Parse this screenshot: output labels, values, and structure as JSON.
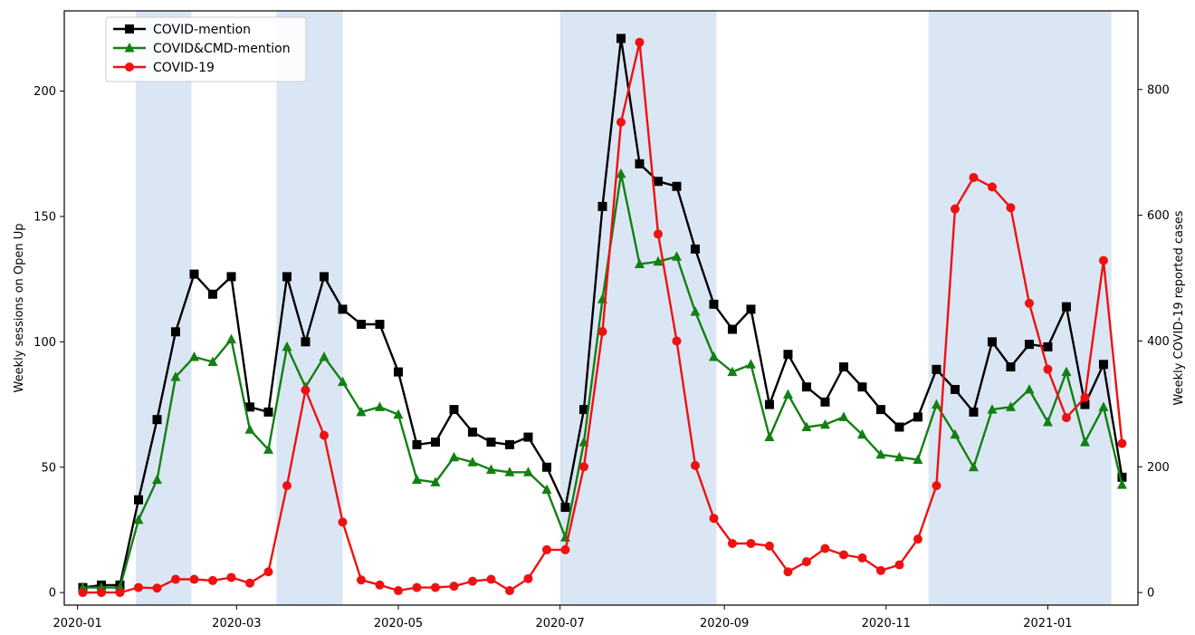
{
  "chart_data": {
    "type": "line",
    "title": "",
    "xlabel": "",
    "ylabel": "Weekly sessions on Open Up",
    "y2label": "Weekly COVID-19 reported cases",
    "xlim": [
      "2019-12-27",
      "2021-02-04"
    ],
    "ylim": [
      -5,
      232
    ],
    "y2lim": [
      -20,
      925
    ],
    "x_ticks": [
      "2020-01",
      "2020-03",
      "2020-05",
      "2020-07",
      "2020-09",
      "2020-11",
      "2021-01"
    ],
    "x_tick_dates": [
      "2020-01-01",
      "2020-03-01",
      "2020-05-01",
      "2020-07-01",
      "2020-09-01",
      "2020-11-01",
      "2021-01-01"
    ],
    "y_ticks": [
      0,
      50,
      100,
      150,
      200
    ],
    "y2_ticks": [
      0,
      200,
      400,
      600,
      800
    ],
    "grid": false,
    "legend_position": "top-left",
    "shaded_periods": [
      [
        "2020-01-23",
        "2020-02-13"
      ],
      [
        "2020-03-16",
        "2020-04-10"
      ],
      [
        "2020-07-01",
        "2020-08-29"
      ],
      [
        "2020-11-17",
        "2021-01-25"
      ]
    ],
    "shade_color": "#dbe6f4",
    "x": [
      "2020-01-03",
      "2020-01-10",
      "2020-01-17",
      "2020-01-24",
      "2020-01-31",
      "2020-02-07",
      "2020-02-14",
      "2020-02-21",
      "2020-02-28",
      "2020-03-06",
      "2020-03-13",
      "2020-03-20",
      "2020-03-27",
      "2020-04-03",
      "2020-04-10",
      "2020-04-17",
      "2020-04-24",
      "2020-05-01",
      "2020-05-08",
      "2020-05-15",
      "2020-05-22",
      "2020-05-29",
      "2020-06-05",
      "2020-06-12",
      "2020-06-19",
      "2020-06-26",
      "2020-07-03",
      "2020-07-10",
      "2020-07-17",
      "2020-07-24",
      "2020-07-31",
      "2020-08-07",
      "2020-08-14",
      "2020-08-21",
      "2020-08-28",
      "2020-09-04",
      "2020-09-11",
      "2020-09-18",
      "2020-09-25",
      "2020-10-02",
      "2020-10-09",
      "2020-10-16",
      "2020-10-23",
      "2020-10-30",
      "2020-11-06",
      "2020-11-13",
      "2020-11-20",
      "2020-11-27",
      "2020-12-04",
      "2020-12-11",
      "2020-12-18",
      "2020-12-25",
      "2021-01-01",
      "2021-01-08",
      "2021-01-15",
      "2021-01-22",
      "2021-01-29"
    ],
    "series": [
      {
        "name": "COVID-mention",
        "axis": "left",
        "color": "#000000",
        "marker": "square",
        "values": [
          2,
          3,
          3,
          37,
          69,
          104,
          127,
          119,
          126,
          74,
          72,
          126,
          100,
          126,
          113,
          107,
          107,
          88,
          59,
          60,
          73,
          64,
          60,
          59,
          62,
          50,
          34,
          73,
          154,
          221,
          171,
          164,
          162,
          137,
          115,
          105,
          113,
          75,
          95,
          82,
          76,
          90,
          82,
          73,
          66,
          70,
          89,
          81,
          72,
          100,
          90,
          99,
          98,
          114,
          75,
          91,
          46
        ]
      },
      {
        "name": "COVID&CMD-mention",
        "axis": "left",
        "color": "#128012",
        "marker": "triangle",
        "values": [
          2,
          2,
          2,
          29,
          45,
          86,
          94,
          92,
          101,
          65,
          57,
          98,
          82,
          94,
          84,
          72,
          74,
          71,
          45,
          44,
          54,
          52,
          49,
          48,
          48,
          41,
          22,
          60,
          117,
          167,
          131,
          132,
          134,
          112,
          94,
          88,
          91,
          62,
          79,
          66,
          67,
          70,
          63,
          55,
          54,
          53,
          75,
          63,
          50,
          73,
          74,
          81,
          68,
          88,
          60,
          74,
          43
        ]
      },
      {
        "name": "COVID-19",
        "axis": "right",
        "color": "#ee1111",
        "marker": "circle",
        "values": [
          0,
          0,
          0,
          8,
          7,
          21,
          21,
          19,
          24,
          15,
          33,
          170,
          322,
          250,
          112,
          20,
          12,
          3,
          8,
          8,
          10,
          18,
          21,
          3,
          22,
          68,
          68,
          200,
          415,
          748,
          875,
          570,
          400,
          202,
          118,
          78,
          78,
          74,
          33,
          49,
          70,
          60,
          55,
          35,
          44,
          85,
          170,
          610,
          660,
          645,
          612,
          460,
          355,
          278,
          310,
          528,
          237
        ]
      }
    ]
  }
}
